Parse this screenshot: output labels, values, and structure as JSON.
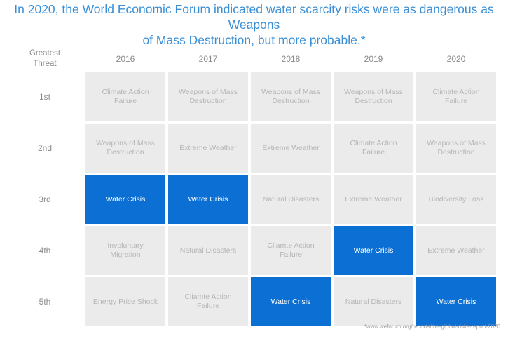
{
  "title_line1": "In 2020, the World Economic Forum indicated water scarcity risks were as dangerous as Weapons",
  "title_line2": "of Mass Destruction, but more probable.*",
  "corner_line1": "Greatest",
  "corner_line2": "Threat",
  "source": "*www.weforum.org/reports/the-global-risks-report-2020",
  "colors": {
    "highlight": "#0c6fd4",
    "cell": "#ebebeb",
    "title": "#3a8fd6"
  },
  "chart_data": {
    "type": "table",
    "columns": [
      "2016",
      "2017",
      "2018",
      "2019",
      "2020"
    ],
    "rows": [
      "1st",
      "2nd",
      "3rd",
      "4th",
      "5th"
    ],
    "cells": [
      [
        "Climate Action Failure",
        "Weapons of Mass Destruction",
        "Weapons of Mass Destruction",
        "Weapons of Mass Destruction",
        "Climate Action Failure"
      ],
      [
        "Weapons of Mass Destruction",
        "Extreme Weather",
        "Extreme Weather",
        "Climate Action Failure",
        "Weapons of Mass Destruction"
      ],
      [
        "Water Crisis",
        "Water Crisis",
        "Natural Disasters",
        "Extreme Weather",
        "Biodiversity Loss"
      ],
      [
        "Involuntary Migration",
        "Natural Disasters",
        "Cliamte Action Failure",
        "Water Crisis",
        "Extreme Weather"
      ],
      [
        "Energy Price Shock",
        "Cliamte Action Failure",
        "Water Crisis",
        "Natural Disasters",
        "Water Crisis"
      ]
    ],
    "highlighted": "Water Crisis"
  }
}
